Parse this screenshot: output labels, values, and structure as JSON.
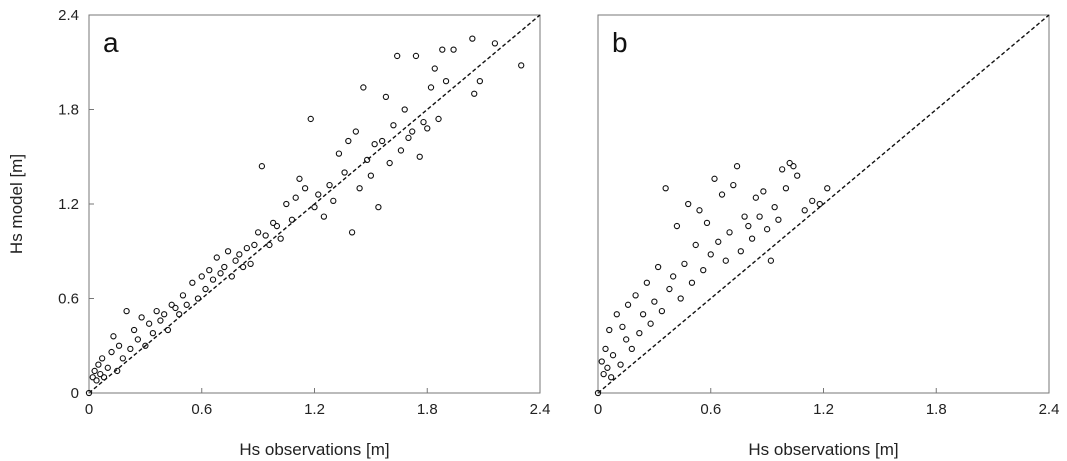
{
  "chart_data": [
    {
      "type": "scatter",
      "panel_label": "a",
      "xlabel": "Hs observations [m]",
      "ylabel": "Hs model [m]",
      "xlim": [
        0,
        2.4
      ],
      "ylim": [
        0,
        2.4
      ],
      "xticks": [
        "0",
        "0.6",
        "1.2",
        "1.8",
        "2.4"
      ],
      "yticks": [
        "0",
        "0.6",
        "1.2",
        "1.8",
        "2.4"
      ],
      "reference_line": "1:1 dashed",
      "marker": "open circle",
      "grid": false,
      "points": [
        [
          0.0,
          0.0
        ],
        [
          0.02,
          0.1
        ],
        [
          0.03,
          0.14
        ],
        [
          0.04,
          0.08
        ],
        [
          0.05,
          0.18
        ],
        [
          0.06,
          0.12
        ],
        [
          0.07,
          0.22
        ],
        [
          0.08,
          0.1
        ],
        [
          0.1,
          0.16
        ],
        [
          0.12,
          0.26
        ],
        [
          0.13,
          0.36
        ],
        [
          0.15,
          0.14
        ],
        [
          0.16,
          0.3
        ],
        [
          0.18,
          0.22
        ],
        [
          0.2,
          0.52
        ],
        [
          0.22,
          0.28
        ],
        [
          0.24,
          0.4
        ],
        [
          0.26,
          0.34
        ],
        [
          0.28,
          0.48
        ],
        [
          0.3,
          0.3
        ],
        [
          0.32,
          0.44
        ],
        [
          0.34,
          0.38
        ],
        [
          0.36,
          0.52
        ],
        [
          0.38,
          0.46
        ],
        [
          0.4,
          0.5
        ],
        [
          0.42,
          0.4
        ],
        [
          0.44,
          0.56
        ],
        [
          0.46,
          0.54
        ],
        [
          0.48,
          0.5
        ],
        [
          0.5,
          0.62
        ],
        [
          0.52,
          0.56
        ],
        [
          0.55,
          0.7
        ],
        [
          0.58,
          0.6
        ],
        [
          0.6,
          0.74
        ],
        [
          0.62,
          0.66
        ],
        [
          0.64,
          0.78
        ],
        [
          0.66,
          0.72
        ],
        [
          0.68,
          0.86
        ],
        [
          0.7,
          0.76
        ],
        [
          0.72,
          0.8
        ],
        [
          0.74,
          0.9
        ],
        [
          0.76,
          0.74
        ],
        [
          0.78,
          0.84
        ],
        [
          0.8,
          0.88
        ],
        [
          0.82,
          0.8
        ],
        [
          0.84,
          0.92
        ],
        [
          0.86,
          0.82
        ],
        [
          0.88,
          0.94
        ],
        [
          0.9,
          1.02
        ],
        [
          0.92,
          1.44
        ],
        [
          0.94,
          1.0
        ],
        [
          0.96,
          0.94
        ],
        [
          0.98,
          1.08
        ],
        [
          1.0,
          1.06
        ],
        [
          1.02,
          0.98
        ],
        [
          1.05,
          1.2
        ],
        [
          1.08,
          1.1
        ],
        [
          1.1,
          1.24
        ],
        [
          1.12,
          1.36
        ],
        [
          1.15,
          1.3
        ],
        [
          1.18,
          1.74
        ],
        [
          1.2,
          1.18
        ],
        [
          1.22,
          1.26
        ],
        [
          1.25,
          1.12
        ],
        [
          1.28,
          1.32
        ],
        [
          1.3,
          1.22
        ],
        [
          1.33,
          1.52
        ],
        [
          1.36,
          1.4
        ],
        [
          1.38,
          1.6
        ],
        [
          1.4,
          1.02
        ],
        [
          1.42,
          1.66
        ],
        [
          1.44,
          1.3
        ],
        [
          1.46,
          1.94
        ],
        [
          1.48,
          1.48
        ],
        [
          1.5,
          1.38
        ],
        [
          1.52,
          1.58
        ],
        [
          1.54,
          1.18
        ],
        [
          1.56,
          1.6
        ],
        [
          1.58,
          1.88
        ],
        [
          1.6,
          1.46
        ],
        [
          1.62,
          1.7
        ],
        [
          1.64,
          2.14
        ],
        [
          1.66,
          1.54
        ],
        [
          1.68,
          1.8
        ],
        [
          1.7,
          1.62
        ],
        [
          1.72,
          1.66
        ],
        [
          1.74,
          2.14
        ],
        [
          1.76,
          1.5
        ],
        [
          1.78,
          1.72
        ],
        [
          1.8,
          1.68
        ],
        [
          1.82,
          1.94
        ],
        [
          1.84,
          2.06
        ],
        [
          1.86,
          1.74
        ],
        [
          1.88,
          2.18
        ],
        [
          1.9,
          1.98
        ],
        [
          1.94,
          2.18
        ],
        [
          2.04,
          2.25
        ],
        [
          2.05,
          1.9
        ],
        [
          2.08,
          1.98
        ],
        [
          2.16,
          2.22
        ],
        [
          2.3,
          2.08
        ]
      ]
    },
    {
      "type": "scatter",
      "panel_label": "b",
      "xlabel": "Hs observations [m]",
      "ylabel": "",
      "xlim": [
        0,
        2.4
      ],
      "ylim": [
        0,
        2.4
      ],
      "xticks": [
        "0",
        "0.6",
        "1.2",
        "1.8",
        "2.4"
      ],
      "yticks": [],
      "reference_line": "1:1 dashed",
      "marker": "open circle",
      "grid": false,
      "points": [
        [
          0.0,
          0.0
        ],
        [
          0.02,
          0.2
        ],
        [
          0.03,
          0.12
        ],
        [
          0.04,
          0.28
        ],
        [
          0.05,
          0.16
        ],
        [
          0.06,
          0.4
        ],
        [
          0.07,
          0.1
        ],
        [
          0.08,
          0.24
        ],
        [
          0.1,
          0.5
        ],
        [
          0.12,
          0.18
        ],
        [
          0.13,
          0.42
        ],
        [
          0.15,
          0.34
        ],
        [
          0.16,
          0.56
        ],
        [
          0.18,
          0.28
        ],
        [
          0.2,
          0.62
        ],
        [
          0.22,
          0.38
        ],
        [
          0.24,
          0.5
        ],
        [
          0.26,
          0.7
        ],
        [
          0.28,
          0.44
        ],
        [
          0.3,
          0.58
        ],
        [
          0.32,
          0.8
        ],
        [
          0.34,
          0.52
        ],
        [
          0.36,
          1.3
        ],
        [
          0.38,
          0.66
        ],
        [
          0.4,
          0.74
        ],
        [
          0.42,
          1.06
        ],
        [
          0.44,
          0.6
        ],
        [
          0.46,
          0.82
        ],
        [
          0.48,
          1.2
        ],
        [
          0.5,
          0.7
        ],
        [
          0.52,
          0.94
        ],
        [
          0.54,
          1.16
        ],
        [
          0.56,
          0.78
        ],
        [
          0.58,
          1.08
        ],
        [
          0.6,
          0.88
        ],
        [
          0.62,
          1.36
        ],
        [
          0.64,
          0.96
        ],
        [
          0.66,
          1.26
        ],
        [
          0.68,
          0.84
        ],
        [
          0.7,
          1.02
        ],
        [
          0.72,
          1.32
        ],
        [
          0.74,
          1.44
        ],
        [
          0.76,
          0.9
        ],
        [
          0.78,
          1.12
        ],
        [
          0.8,
          1.06
        ],
        [
          0.82,
          0.98
        ],
        [
          0.84,
          1.24
        ],
        [
          0.86,
          1.12
        ],
        [
          0.88,
          1.28
        ],
        [
          0.9,
          1.04
        ],
        [
          0.92,
          0.84
        ],
        [
          0.94,
          1.18
        ],
        [
          0.96,
          1.1
        ],
        [
          0.98,
          1.42
        ],
        [
          1.0,
          1.3
        ],
        [
          1.02,
          1.46
        ],
        [
          1.04,
          1.44
        ],
        [
          1.06,
          1.38
        ],
        [
          1.1,
          1.16
        ],
        [
          1.14,
          1.22
        ],
        [
          1.18,
          1.2
        ],
        [
          1.22,
          1.3
        ]
      ]
    }
  ]
}
